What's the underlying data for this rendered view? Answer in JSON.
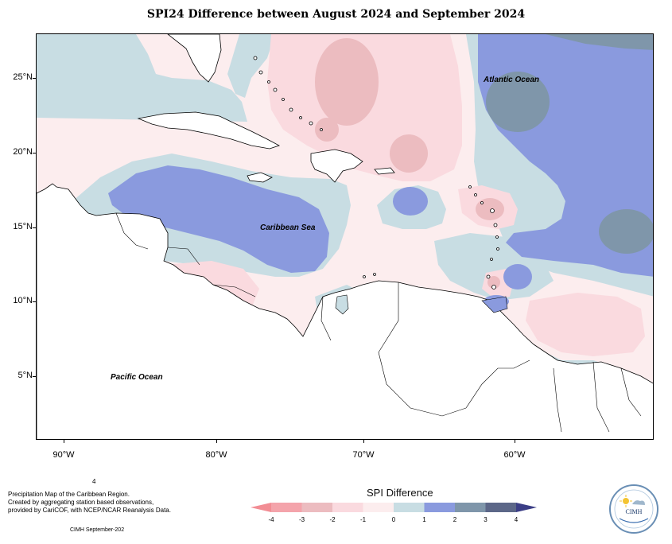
{
  "title": "SPI24 Difference between August 2024 and September 2024",
  "axes": {
    "lat_labels": [
      "25°N",
      "20°N",
      "15°N",
      "10°N",
      "5°N"
    ],
    "lon_labels": [
      "90°W",
      "80°W",
      "70°W",
      "60°W"
    ]
  },
  "map_labels": {
    "atlantic": "Atlantic Ocean",
    "caribbean": "Caribbean Sea",
    "pacific": "Pacific Ocean"
  },
  "caption": {
    "superscript": "4",
    "line1": "Precipitation Map of the Caribbean Region.",
    "line2": "Created by aggregating station based observations,",
    "line3": "provided by CariCOF, with NCEP/NCAR Reanalysis Data.",
    "credit": "CIMH September-202"
  },
  "legend": {
    "title": "SPI Difference",
    "ticks": [
      "-4",
      "-3",
      "-2",
      "-1",
      "0",
      "1",
      "2",
      "3",
      "4"
    ],
    "colors": {
      "lt_minus4": "#f28d94",
      "m4_m3": "#f4a4ab",
      "m3_m2": "#ecbcc0",
      "m2_m1": "#fadadf",
      "m1_0": "#fcedee",
      "0_1": "#c8dde3",
      "1_2": "#8a9ade",
      "2_3": "#7f96aa",
      "3_4": "#5c6788",
      "gt_4": "#3b3e86"
    }
  },
  "colors": {
    "land": "#ffffff",
    "coast": "#000000"
  },
  "logo_text": "CIMH"
}
